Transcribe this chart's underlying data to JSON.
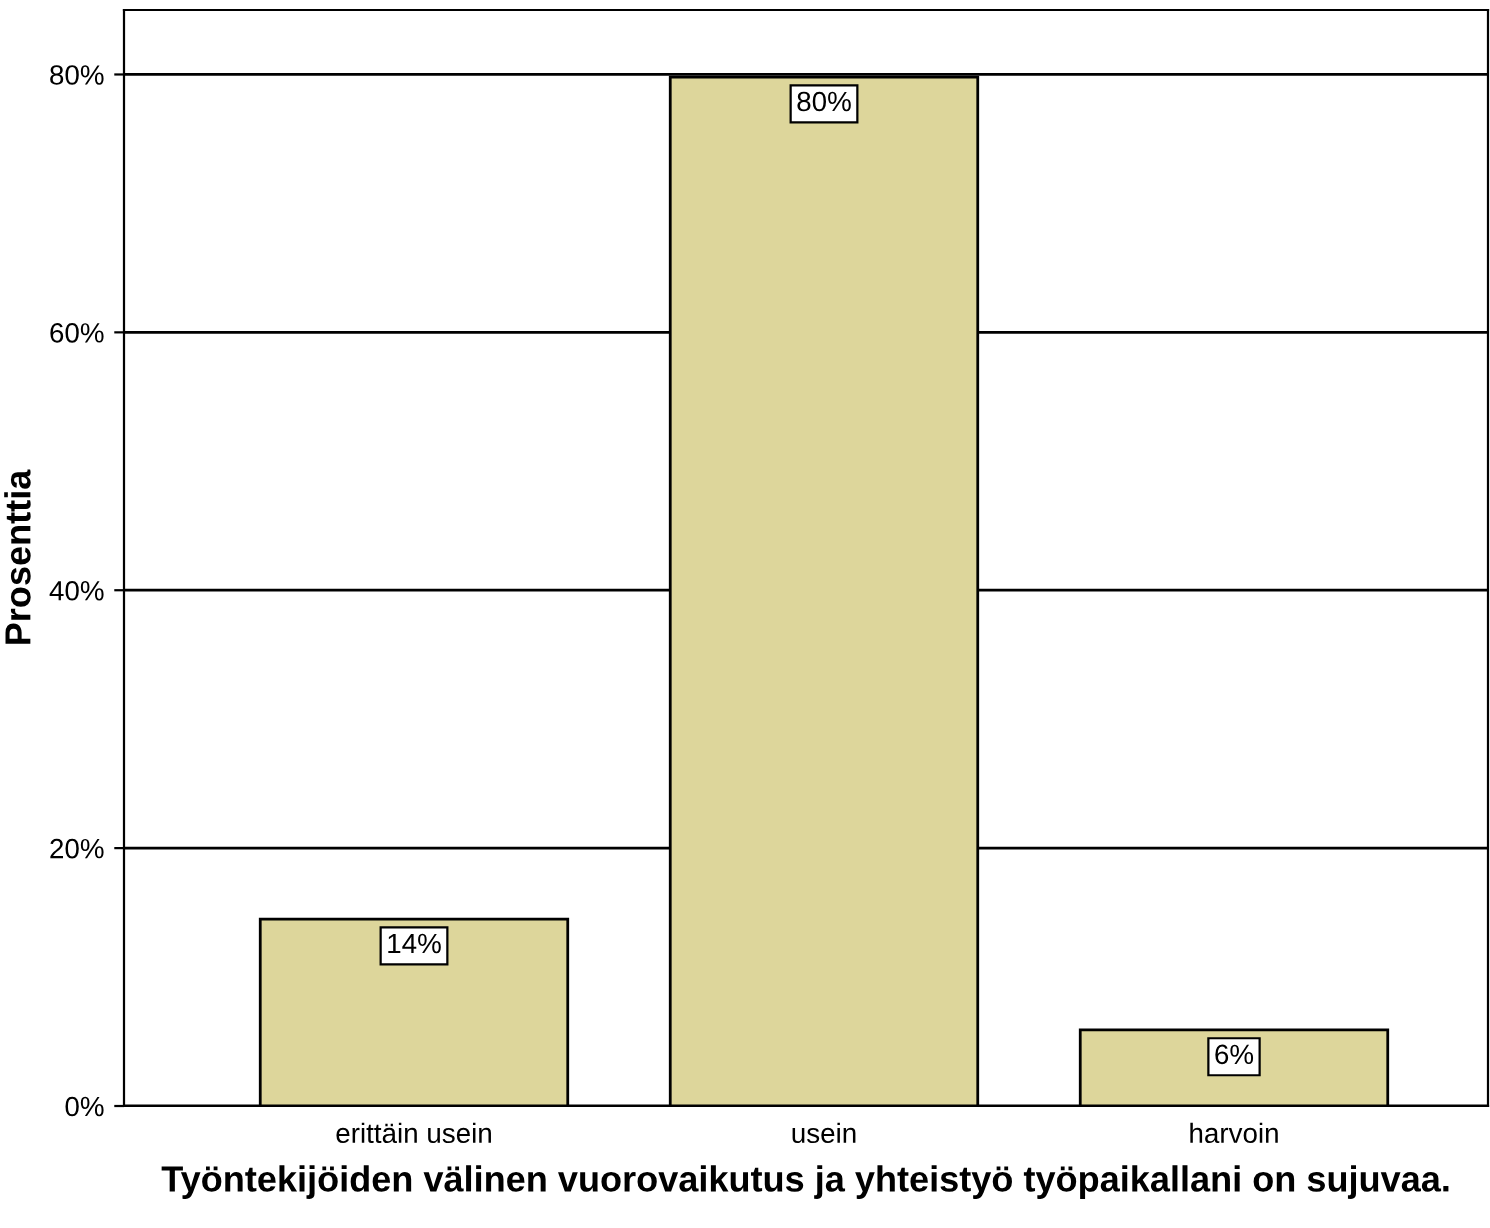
{
  "chart_data": {
    "type": "bar",
    "xlabel": "Työntekijöiden välinen vuorovaikutus ja yhteistyö työpaikallani on sujuvaa.",
    "ylabel": "Prosenttia",
    "categories": [
      "erittäin usein",
      "usein",
      "harvoin"
    ],
    "values": [
      14.5,
      79.8,
      5.9
    ],
    "value_labels": [
      "14%",
      "80%",
      "6%"
    ],
    "color": "#ddd69b",
    "ylim": [
      0,
      85
    ],
    "yticks": [
      {
        "value": 0,
        "label": "0%"
      },
      {
        "value": 20,
        "label": "20%"
      },
      {
        "value": 40,
        "label": "40%"
      },
      {
        "value": 60,
        "label": "60%"
      },
      {
        "value": 80,
        "label": "80%"
      }
    ],
    "grid": "y",
    "legend": false
  }
}
